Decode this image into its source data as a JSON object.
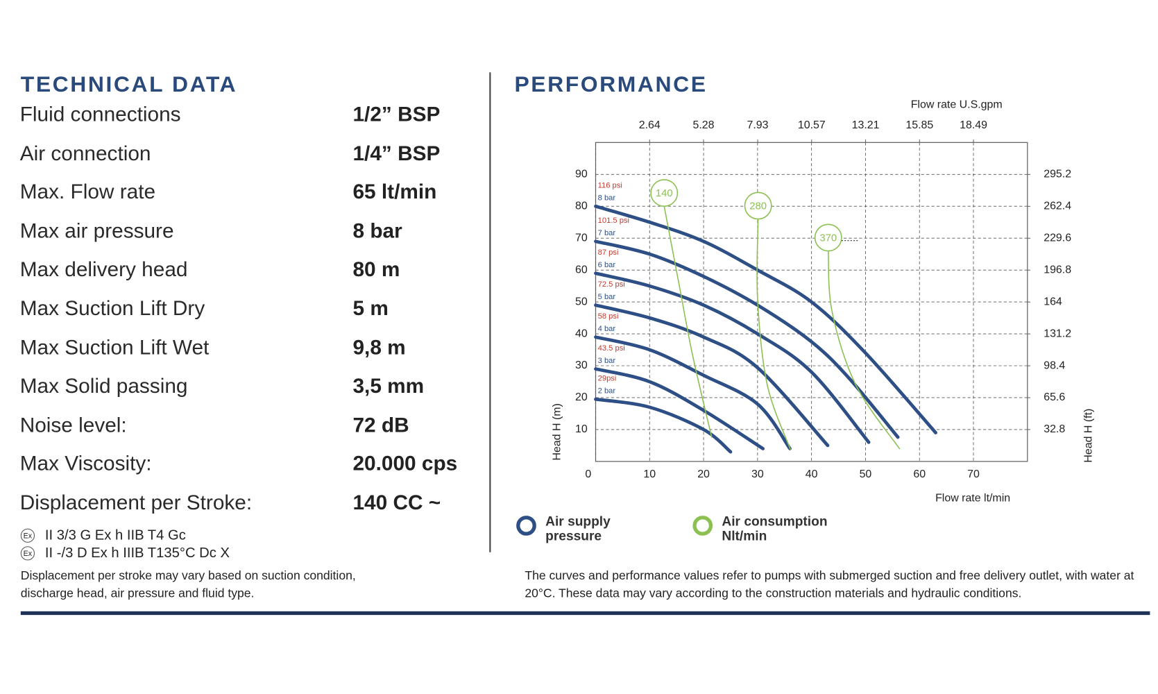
{
  "technical_data": {
    "title": "TECHNICAL DATA",
    "rows": [
      [
        "Fluid connections",
        "1/2” BSP"
      ],
      [
        "Air connection",
        "1/4” BSP"
      ],
      [
        "Max. Flow rate",
        "65 lt/min"
      ],
      [
        "Max air pressure",
        "8 bar"
      ],
      [
        "Max delivery head",
        "80 m"
      ],
      [
        "Max Suction Lift Dry",
        "5 m"
      ],
      [
        "Max Suction Lift Wet",
        "9,8 m"
      ],
      [
        "Max Solid passing",
        "3,5 mm"
      ],
      [
        "Noise level:",
        "72 dB"
      ],
      [
        "Max Viscosity:",
        "20.000 cps"
      ],
      [
        "Displacement per Stroke:",
        "140 CC ~"
      ]
    ],
    "certifications": [
      {
        "icon": "Ex",
        "text": "II 3/3 G Ex h IIB T4 Gc"
      },
      {
        "icon": "Ex",
        "text": "II -/3 D Ex h IIIB T135°C Dc X"
      }
    ],
    "note": "Displacement per stroke may vary based on suction condition, discharge head, air pressure and fluid type."
  },
  "performance": {
    "title": "PERFORMANCE",
    "note": "The curves and performance values refer to pumps with submerged suction and free delivery outlet, with water at 20°C. These data may vary according to the construction materials and hydraulic conditions."
  },
  "chart_data": {
    "type": "line",
    "xlabel": "Flow rate lt/min",
    "x2label": "Flow rate U.S.gpm",
    "ylabel": "Head H (m)",
    "y2label": "Head H (ft)",
    "xlim": [
      0,
      80
    ],
    "xticks": [
      0,
      10,
      20,
      30,
      40,
      50,
      60,
      70
    ],
    "x2lim": [
      0,
      21.13
    ],
    "x2ticks": [
      2.64,
      5.28,
      7.93,
      10.57,
      13.21,
      15.85,
      18.49
    ],
    "ylim": [
      0,
      100
    ],
    "yticks": [
      10,
      20,
      30,
      40,
      50,
      60,
      70,
      80,
      90
    ],
    "y2lim": [
      0,
      328.1
    ],
    "y2ticks": [
      32.8,
      65.6,
      98.4,
      131.2,
      164,
      196.8,
      229.6,
      262.4,
      295.2
    ],
    "grid": true,
    "legend": [
      {
        "label": "Air supply pressure",
        "color": "#2d4f86"
      },
      {
        "label": "Air consumption Nlt/min",
        "color": "#8cc152"
      }
    ],
    "series": [
      {
        "name": "8 bar",
        "psi": "116 psi",
        "group": "pressure",
        "color": "#2d4f86",
        "x": [
          0,
          10,
          20,
          30,
          40,
          50,
          63
        ],
        "values": [
          80,
          75,
          69,
          60,
          50,
          34,
          9
        ]
      },
      {
        "name": "7 bar",
        "psi": "101.5 psi",
        "group": "pressure",
        "color": "#2d4f86",
        "x": [
          0,
          10,
          20,
          30,
          40,
          47,
          56
        ],
        "values": [
          69,
          65,
          58,
          49,
          37.5,
          26,
          7.6
        ]
      },
      {
        "name": "6 bar",
        "psi": "87 psi",
        "group": "pressure",
        "color": "#2d4f86",
        "x": [
          0,
          10,
          20,
          30,
          40,
          50.6
        ],
        "values": [
          59,
          55,
          49,
          40,
          28,
          6
        ]
      },
      {
        "name": "5 bar",
        "psi": "72.5 psi",
        "group": "pressure",
        "color": "#2d4f86",
        "x": [
          0,
          10,
          20,
          30,
          43
        ],
        "values": [
          49,
          45,
          39,
          29.4,
          5
        ]
      },
      {
        "name": "4 bar",
        "psi": "58 psi",
        "group": "pressure",
        "color": "#2d4f86",
        "x": [
          0,
          10,
          20,
          30,
          36
        ],
        "values": [
          39,
          35,
          27,
          18,
          4
        ]
      },
      {
        "name": "3 bar",
        "psi": "43.5 psi",
        "group": "pressure",
        "color": "#2d4f86",
        "x": [
          0,
          10,
          20,
          31
        ],
        "values": [
          29,
          25,
          16,
          4
        ]
      },
      {
        "name": "2 bar",
        "psi": "29psi",
        "group": "pressure",
        "color": "#2d4f86",
        "x": [
          0,
          10,
          20,
          25
        ],
        "values": [
          19.5,
          17,
          10,
          3
        ]
      },
      {
        "name": "140",
        "group": "consumption",
        "color": "#8cc152",
        "x": [
          12.7,
          15.4,
          18,
          21.5
        ],
        "values": [
          80,
          56,
          33,
          7.6
        ]
      },
      {
        "name": "280",
        "group": "consumption",
        "color": "#8cc152",
        "x": [
          30.1,
          30,
          31.8,
          36.1
        ],
        "values": [
          76,
          51,
          24,
          3.7
        ]
      },
      {
        "name": "370",
        "group": "consumption",
        "color": "#8cc152",
        "x": [
          43.1,
          43.8,
          48.2,
          56.3
        ],
        "values": [
          66,
          47,
          24,
          4
        ]
      }
    ]
  }
}
